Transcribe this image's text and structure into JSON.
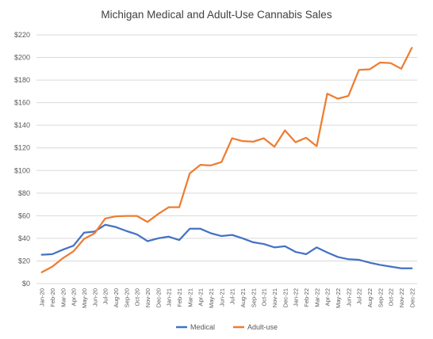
{
  "chart_data": {
    "type": "line",
    "title": "Michigan Medical and Adult-Use Cannabis Sales",
    "xlabel": "",
    "ylabel": "",
    "ylim": [
      0,
      220
    ],
    "y_ticks": [
      0,
      20,
      40,
      60,
      80,
      100,
      120,
      140,
      160,
      180,
      200,
      220
    ],
    "y_tick_labels": [
      "$0",
      "$20",
      "$40",
      "$60",
      "$80",
      "$100",
      "$120",
      "$140",
      "$160",
      "$180",
      "$200",
      "$220"
    ],
    "grid": "horizontal",
    "legend_position": "bottom",
    "categories": [
      "Jan-20",
      "Feb-20",
      "Mar-20",
      "Apr-20",
      "May-20",
      "Jun-20",
      "Jul-20",
      "Aug-20",
      "Sep-20",
      "Oct-20",
      "Nov-20",
      "Dec-20",
      "Jan-21",
      "Feb-21",
      "Mar-21",
      "Apr-21",
      "May-21",
      "Jun-21",
      "Jul-21",
      "Aug-21",
      "Sep-21",
      "Oct-21",
      "Nov-21",
      "Dec-21",
      "Jan-22",
      "Feb-22",
      "Mar-22",
      "Apr-22",
      "May-22",
      "Jun-22",
      "Jul-22",
      "Aug-22",
      "Sep-22",
      "Oct-22",
      "Nov-22",
      "Dec-22"
    ],
    "series": [
      {
        "name": "Medical",
        "color": "#4472c4",
        "values": [
          25.5,
          26,
          30,
          33.5,
          45,
          46,
          52,
          50,
          46.5,
          43.5,
          37.5,
          40,
          41.5,
          38.5,
          48.5,
          48.5,
          44.5,
          42,
          43,
          40,
          36.5,
          35,
          32,
          33,
          28,
          26,
          32,
          27.5,
          23.5,
          21.5,
          21,
          18.5,
          16.5,
          15,
          13.5,
          13.5
        ]
      },
      {
        "name": "Adult-use",
        "color": "#ed7d31",
        "values": [
          10,
          15,
          22.5,
          28.5,
          39.5,
          44.5,
          57.5,
          59.5,
          59.8,
          59.8,
          54.5,
          61.5,
          67.5,
          67.5,
          97.5,
          105,
          104.5,
          107.5,
          128.5,
          126,
          125.5,
          128.5,
          121,
          135.5,
          125,
          129,
          121.5,
          168,
          163.5,
          166,
          189,
          189.5,
          195.5,
          195,
          190,
          208.5
        ]
      }
    ]
  }
}
